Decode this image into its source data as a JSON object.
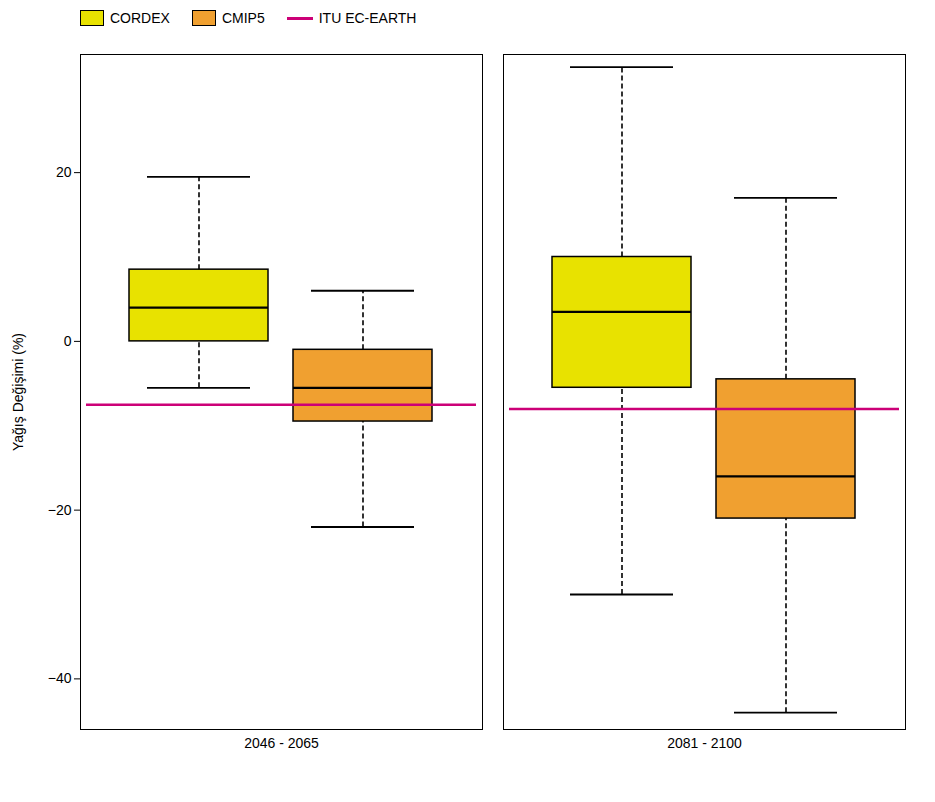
{
  "chart_data": {
    "type": "box",
    "ylabel": "Yağış Değişimi (%)",
    "categories": [
      "2046 - 2065",
      "2081 - 2100"
    ],
    "series": [
      {
        "name": "CORDEX",
        "color": "#e8e200",
        "values": [
          {
            "whislo": -5.5,
            "q1": 0.0,
            "med": 4.0,
            "q3": 8.5,
            "whishi": 19.5
          },
          {
            "whislo": -30.0,
            "q1": -5.5,
            "med": 3.5,
            "q3": 10.0,
            "whishi": 32.5
          }
        ]
      },
      {
        "name": "CMIP5",
        "color": "#f0a030",
        "values": [
          {
            "whislo": -22.0,
            "q1": -9.5,
            "med": -5.5,
            "q3": -1.0,
            "whishi": 6.0
          },
          {
            "whislo": -44.0,
            "q1": -21.0,
            "med": -16.0,
            "q3": -4.5,
            "whishi": 17.0
          }
        ]
      },
      {
        "name": "ITU EC-EARTH",
        "type": "line",
        "color": "#cc0077",
        "values": [
          -7.5,
          -8.0
        ]
      }
    ],
    "ylim": [
      -46,
      34
    ],
    "yticks": [
      20,
      0,
      -20,
      -40
    ],
    "legend": "upper left"
  }
}
